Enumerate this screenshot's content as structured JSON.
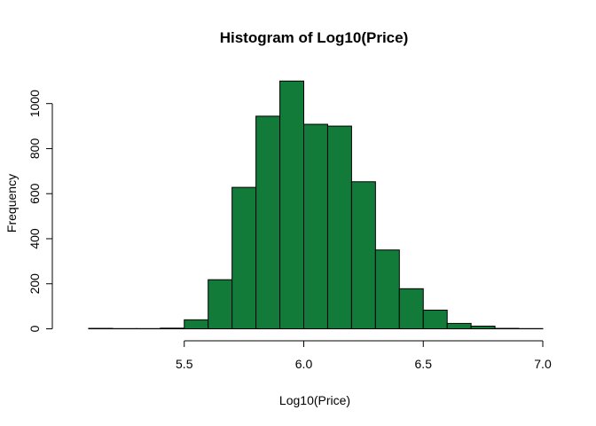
{
  "colors": {
    "bar_fill": "#137b3a",
    "bar_stroke": "#000000",
    "background": "#ffffff"
  },
  "chart_data": {
    "type": "bar",
    "title": "Histogram of Log10(Price)",
    "xlabel": "Log10(Price)",
    "ylabel": "Frequency",
    "bin_width": 0.1,
    "bins": [
      {
        "start": 5.1,
        "end": 5.2,
        "count": 2
      },
      {
        "start": 5.2,
        "end": 5.3,
        "count": 1
      },
      {
        "start": 5.3,
        "end": 5.4,
        "count": 1
      },
      {
        "start": 5.4,
        "end": 5.5,
        "count": 3
      },
      {
        "start": 5.5,
        "end": 5.6,
        "count": 40
      },
      {
        "start": 5.6,
        "end": 5.7,
        "count": 218
      },
      {
        "start": 5.7,
        "end": 5.8,
        "count": 628
      },
      {
        "start": 5.8,
        "end": 5.9,
        "count": 944
      },
      {
        "start": 5.9,
        "end": 6.0,
        "count": 1100
      },
      {
        "start": 6.0,
        "end": 6.1,
        "count": 908
      },
      {
        "start": 6.1,
        "end": 6.2,
        "count": 900
      },
      {
        "start": 6.2,
        "end": 6.3,
        "count": 653
      },
      {
        "start": 6.3,
        "end": 6.4,
        "count": 350
      },
      {
        "start": 6.4,
        "end": 6.5,
        "count": 178
      },
      {
        "start": 6.5,
        "end": 6.6,
        "count": 83
      },
      {
        "start": 6.6,
        "end": 6.7,
        "count": 24
      },
      {
        "start": 6.7,
        "end": 6.8,
        "count": 12
      },
      {
        "start": 6.8,
        "end": 6.9,
        "count": 2
      },
      {
        "start": 6.9,
        "end": 7.0,
        "count": 1
      }
    ],
    "x_ticks": [
      5.5,
      6.0,
      6.5,
      7.0
    ],
    "x_tick_labels": [
      "5.5",
      "6.0",
      "6.5",
      "7.0"
    ],
    "y_ticks": [
      0,
      200,
      400,
      600,
      800,
      1000
    ],
    "y_tick_labels": [
      "0",
      "200",
      "400",
      "600",
      "800",
      "1000"
    ],
    "xlim": [
      5.1,
      7.0
    ],
    "ylim": [
      0,
      1100
    ],
    "grid": false,
    "legend": "none"
  }
}
